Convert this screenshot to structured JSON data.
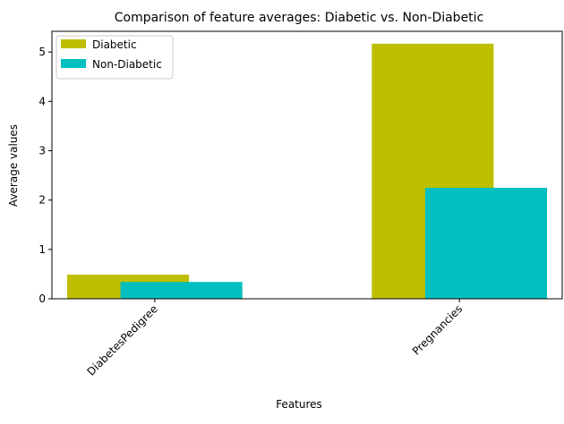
{
  "chart_data": {
    "type": "bar",
    "title": "Comparison of feature averages: Diabetic vs. Non-Diabetic",
    "xlabel": "Features",
    "ylabel": "Average values",
    "categories": [
      "DiabetesPedigree",
      "Pregnancies"
    ],
    "series": [
      {
        "name": "Diabetic",
        "color": "#bfbf00",
        "values": [
          0.49,
          5.17
        ]
      },
      {
        "name": "Non-Diabetic",
        "color": "#00bfbf",
        "values": [
          0.34,
          2.25
        ]
      }
    ],
    "ylim": [
      0,
      5.42
    ],
    "yticks": [
      0,
      1,
      2,
      3,
      4,
      5
    ],
    "legend": "top-left",
    "grid": false
  }
}
